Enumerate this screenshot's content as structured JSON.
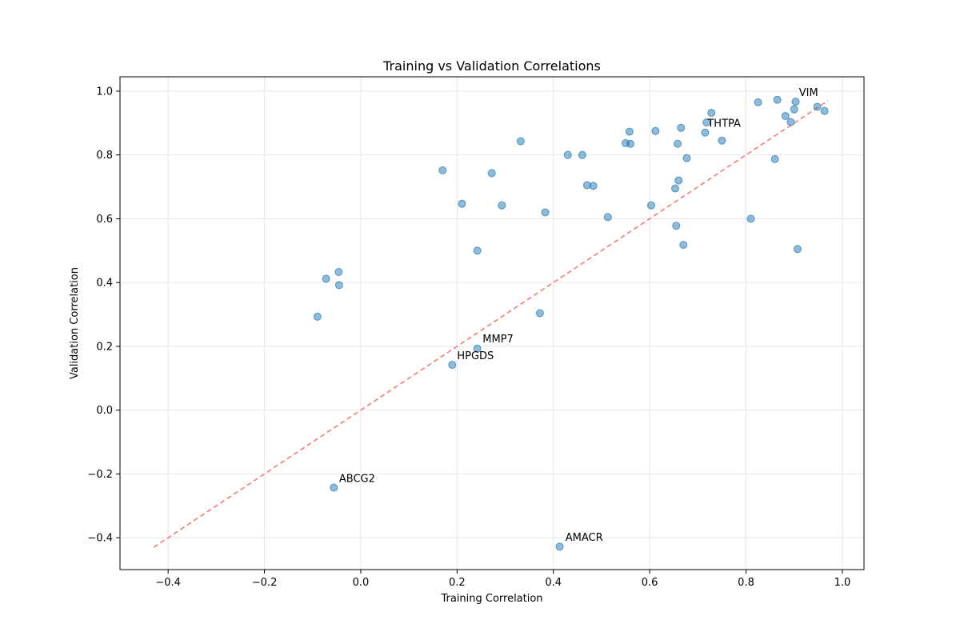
{
  "colors": {
    "point_fill": "#1f77b4",
    "point_opacity": 0.5,
    "reference_line": "#f97c74",
    "grid": "#e6e6e6",
    "axis": "#000000"
  },
  "chart_data": {
    "type": "scatter",
    "title": "Training vs Validation Correlations",
    "xlabel": "Training Correlation",
    "ylabel": "Validation Correlation",
    "xlim": [
      -0.5,
      1.045
    ],
    "ylim": [
      -0.5,
      1.045
    ],
    "grid": true,
    "xticks": [
      -0.4,
      -0.2,
      0.0,
      0.2,
      0.4,
      0.6,
      0.8,
      1.0
    ],
    "xtick_labels": [
      "−0.4",
      "−0.2",
      "0.0",
      "0.2",
      "0.4",
      "0.6",
      "0.8",
      "1.0"
    ],
    "yticks": [
      -0.4,
      -0.2,
      0.0,
      0.2,
      0.4,
      0.6,
      0.8,
      1.0
    ],
    "ytick_labels": [
      "−0.4",
      "−0.2",
      "0.0",
      "0.2",
      "0.4",
      "0.6",
      "0.8",
      "1.0"
    ],
    "reference_line": {
      "style": "dashed",
      "from": [
        -0.43,
        -0.43
      ],
      "to": [
        0.97,
        0.97
      ]
    },
    "points": [
      {
        "x": -0.09,
        "y": 0.293
      },
      {
        "x": -0.072,
        "y": 0.412
      },
      {
        "x": -0.046,
        "y": 0.433
      },
      {
        "x": -0.045,
        "y": 0.392
      },
      {
        "x": -0.056,
        "y": -0.243
      },
      {
        "x": 0.17,
        "y": 0.752
      },
      {
        "x": 0.19,
        "y": 0.142
      },
      {
        "x": 0.21,
        "y": 0.647
      },
      {
        "x": 0.242,
        "y": 0.5
      },
      {
        "x": 0.242,
        "y": 0.193
      },
      {
        "x": 0.272,
        "y": 0.743
      },
      {
        "x": 0.293,
        "y": 0.642
      },
      {
        "x": 0.332,
        "y": 0.843
      },
      {
        "x": 0.372,
        "y": 0.304
      },
      {
        "x": 0.383,
        "y": 0.62
      },
      {
        "x": 0.413,
        "y": -0.428
      },
      {
        "x": 0.43,
        "y": 0.8
      },
      {
        "x": 0.46,
        "y": 0.8
      },
      {
        "x": 0.47,
        "y": 0.705
      },
      {
        "x": 0.483,
        "y": 0.703
      },
      {
        "x": 0.513,
        "y": 0.605
      },
      {
        "x": 0.55,
        "y": 0.837
      },
      {
        "x": 0.558,
        "y": 0.873
      },
      {
        "x": 0.56,
        "y": 0.835
      },
      {
        "x": 0.603,
        "y": 0.642
      },
      {
        "x": 0.612,
        "y": 0.875
      },
      {
        "x": 0.653,
        "y": 0.695
      },
      {
        "x": 0.655,
        "y": 0.578
      },
      {
        "x": 0.658,
        "y": 0.835
      },
      {
        "x": 0.66,
        "y": 0.72
      },
      {
        "x": 0.665,
        "y": 0.885
      },
      {
        "x": 0.67,
        "y": 0.518
      },
      {
        "x": 0.677,
        "y": 0.79
      },
      {
        "x": 0.715,
        "y": 0.87
      },
      {
        "x": 0.718,
        "y": 0.902
      },
      {
        "x": 0.728,
        "y": 0.932
      },
      {
        "x": 0.75,
        "y": 0.845
      },
      {
        "x": 0.81,
        "y": 0.6
      },
      {
        "x": 0.825,
        "y": 0.965
      },
      {
        "x": 0.86,
        "y": 0.787
      },
      {
        "x": 0.865,
        "y": 0.973
      },
      {
        "x": 0.882,
        "y": 0.922
      },
      {
        "x": 0.893,
        "y": 0.903
      },
      {
        "x": 0.9,
        "y": 0.943
      },
      {
        "x": 0.903,
        "y": 0.967
      },
      {
        "x": 0.907,
        "y": 0.505
      },
      {
        "x": 0.948,
        "y": 0.951
      },
      {
        "x": 0.963,
        "y": 0.938
      }
    ],
    "annotations": [
      {
        "text": "VIM",
        "x": 0.91,
        "y": 0.985
      },
      {
        "text": "THTPA",
        "x": 0.72,
        "y": 0.888
      },
      {
        "text": "MMP7",
        "x": 0.253,
        "y": 0.212
      },
      {
        "text": "HPGDS",
        "x": 0.2,
        "y": 0.16
      },
      {
        "text": "ABCG2",
        "x": -0.045,
        "y": -0.225
      },
      {
        "text": "AMACR",
        "x": 0.425,
        "y": -0.41
      }
    ]
  }
}
